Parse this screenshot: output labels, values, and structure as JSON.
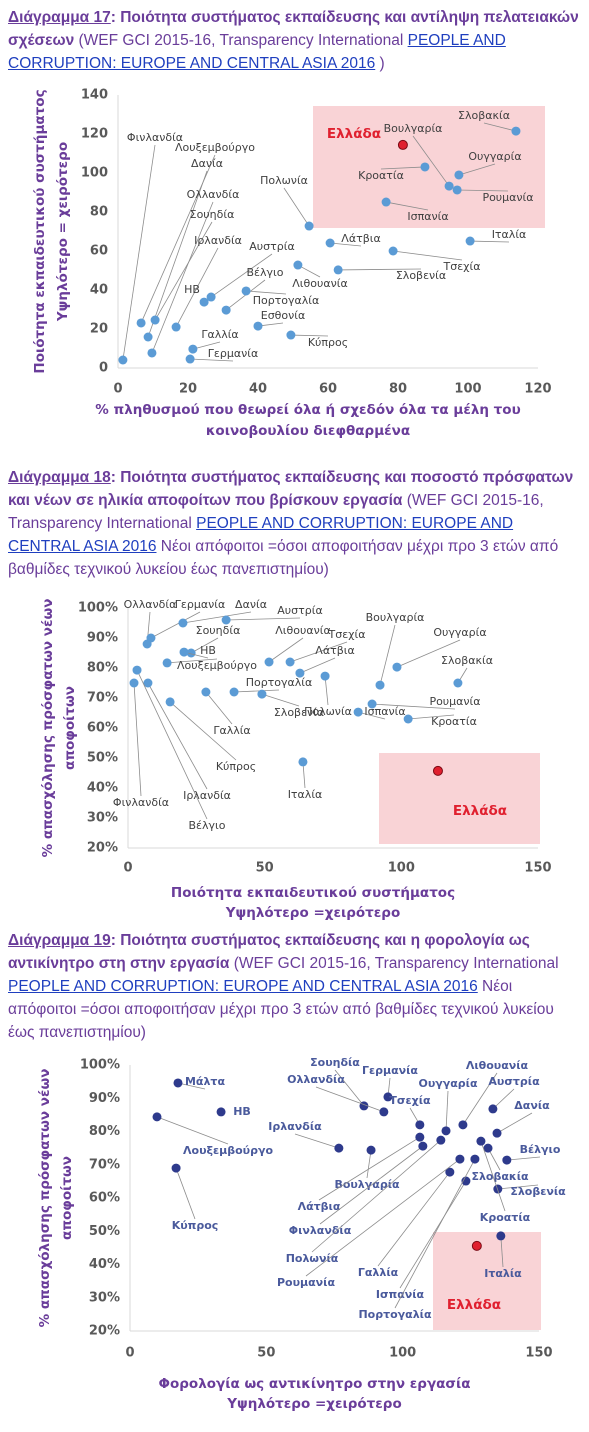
{
  "chart_data": [
    {
      "type": "scatter",
      "caption": [
        {
          "text": "Διάγραμμα 17",
          "style": "label"
        },
        {
          "text": ": Ποιότητα συστήματος εκπαίδευσης και αντίληψη πελατειακών σχέσεων",
          "style": "title"
        },
        {
          "text": " (WEF GCI 2015-16, Transparency International ",
          "style": "source"
        },
        {
          "text": "PEOPLE AND CORRUPTION: EUROPE AND CENTRAL ASIA 2016",
          "style": "link"
        },
        {
          "text": " )",
          "style": "source"
        }
      ],
      "xlabel": [
        "% πληθυσμού που θεωρεί όλα ή σχεδόν όλα τα μέλη του",
        "κοινοβουλίου διεφθαρμένα"
      ],
      "ylabel": [
        "Ποιότητα εκπαιδευτικού συστήματος",
        "Υψηλότερο = χειρότερο"
      ],
      "xlim": [
        0,
        120
      ],
      "xticks": [
        0,
        20,
        40,
        60,
        80,
        100,
        120
      ],
      "ylim": [
        0,
        140
      ],
      "yticks": [
        0,
        20,
        40,
        60,
        80,
        100,
        120,
        140
      ],
      "color": "#5b9bd5",
      "label_color": "#404040",
      "labels": [
        "Φινλανδία",
        "Λουξεμβούργο",
        "Δανία",
        "Ολλανδία",
        "Σουηδία",
        "Ιρλανδία",
        "Γερμανία",
        "Γαλλία",
        "ΗΒ",
        "Αυστρία",
        "Βέλγιο",
        "Πορτογαλία",
        "Εσθονία",
        "Κύπρος",
        "Πολωνία",
        "Λιθουανία",
        "Λάτβια",
        "Σλοβενία",
        "Τσεχία",
        "Ιταλία",
        "Ισπανία",
        "Κροατία",
        "Βουλγαρία",
        "Ουγγαρία",
        "Ρουμανία",
        "Σλοβακία",
        "Ελλάδα"
      ],
      "x": [
        1.4,
        6.6,
        8.6,
        9.7,
        10.6,
        16.6,
        20.6,
        21.4,
        24.6,
        26.6,
        30.9,
        36.6,
        40.0,
        49.4,
        54.6,
        51.4,
        60.6,
        62.9,
        78.6,
        100.6,
        76.6,
        87.7,
        94.6,
        97.4,
        96.9,
        113.7,
        81.4
      ],
      "y": [
        4.1,
        23.1,
        15.9,
        7.7,
        24.6,
        21.0,
        4.6,
        9.7,
        33.8,
        36.4,
        29.7,
        39.5,
        21.5,
        16.9,
        72.8,
        52.8,
        64.1,
        50.3,
        60.0,
        65.1,
        85.1,
        103.1,
        93.3,
        99.0,
        91.3,
        121.5,
        114.4
      ],
      "colors": [
        "#5b9bd5",
        "#5b9bd5",
        "#5b9bd5",
        "#5b9bd5",
        "#5b9bd5",
        "#5b9bd5",
        "#5b9bd5",
        "#5b9bd5",
        "#5b9bd5",
        "#5b9bd5",
        "#5b9bd5",
        "#5b9bd5",
        "#5b9bd5",
        "#5b9bd5",
        "#5b9bd5",
        "#5b9bd5",
        "#5b9bd5",
        "#5b9bd5",
        "#5b9bd5",
        "#5b9bd5",
        "#5b9bd5",
        "#5b9bd5",
        "#5b9bd5",
        "#5b9bd5",
        "#5b9bd5",
        "#5b9bd5",
        "#e0202f"
      ]
    },
    {
      "type": "scatter",
      "caption": [
        {
          "text": "Διάγραμμα 18",
          "style": "label"
        },
        {
          "text": ": Ποιότητα συστήματος εκπαίδευσης και ποσοστό πρόσφατων και νέων σε ηλικία αποφοίτων που βρίσκουν εργασία",
          "style": "title"
        },
        {
          "text": " (WEF GCI 2015-16, Transparency International ",
          "style": "source"
        },
        {
          "text": "PEOPLE AND CORRUPTION: EUROPE AND CENTRAL ASIA 2016",
          "style": "link"
        },
        {
          "text": " Νέοι απόφοιτοι =όσοι αποφοιτήσαν μέχρι προ 3 ετών από βαθμίδες τεχνικού λυκείου έως πανεπιστημίου)",
          "style": "source"
        }
      ],
      "xlabel": [
        "Ποιότητα εκπαιδευτικού συστήματος",
        "Υψηλότερο =χειρότερο"
      ],
      "ylabel": [
        "% απασχόλησης πρόσφατων νέων",
        "αποφοίτων"
      ],
      "xlim": [
        0,
        150
      ],
      "xticks": [
        0,
        50,
        100,
        150
      ],
      "ylim": [
        20,
        100
      ],
      "yticks": [
        {
          "value": 20,
          "label": "20%"
        },
        {
          "value": 30,
          "label": "30%"
        },
        {
          "value": 40,
          "label": "40%"
        },
        {
          "value": 50,
          "label": "50%"
        },
        {
          "value": 60,
          "label": "60%"
        },
        {
          "value": 70,
          "label": "70%"
        },
        {
          "value": 80,
          "label": "80%"
        },
        {
          "value": 90,
          "label": "90%"
        },
        {
          "value": 100,
          "label": "100%"
        }
      ],
      "color": "#5b9bd5",
      "label_color": "#404040",
      "labels": [
        "Ολλανδία",
        "Γερμανία",
        "Δανία",
        "Αυστρία",
        "Σουηδία",
        "ΗΒ",
        "Λουξεμβούργο",
        "Λιθουανία",
        "Τσεχία",
        "Λάτβια",
        "Πορτογαλία",
        "Σλοβενία",
        "Γαλλία",
        "Κύπρος",
        "Ιρλανδία",
        "Βέλγιο",
        "Φινλανδία",
        "Πολωνία",
        "Ισπανία",
        "Βουλγαρία",
        "Ουγγαρία",
        "Ρουμανία",
        "Κροατία",
        "Σλοβακία",
        "Ιταλία",
        "Ελλάδα"
      ],
      "x": [
        7.0,
        8.4,
        20.1,
        35.9,
        23.1,
        20.5,
        14.3,
        51.6,
        59.3,
        62.9,
        38.8,
        49.0,
        28.5,
        15.4,
        7.3,
        3.3,
        2.2,
        72.1,
        84.2,
        92.2,
        98.4,
        89.3,
        102.5,
        120.7,
        64.0,
        113.4
      ],
      "y": [
        88.0,
        90.0,
        95.0,
        96.0,
        85.0,
        85.3,
        81.7,
        82.0,
        82.0,
        78.3,
        72.0,
        71.3,
        72.0,
        68.7,
        75.0,
        79.3,
        75.0,
        77.3,
        65.3,
        74.3,
        80.3,
        68.0,
        63.0,
        75.0,
        48.7,
        45.7
      ],
      "colors": [
        "#5b9bd5",
        "#5b9bd5",
        "#5b9bd5",
        "#5b9bd5",
        "#5b9bd5",
        "#5b9bd5",
        "#5b9bd5",
        "#5b9bd5",
        "#5b9bd5",
        "#5b9bd5",
        "#5b9bd5",
        "#5b9bd5",
        "#5b9bd5",
        "#5b9bd5",
        "#5b9bd5",
        "#5b9bd5",
        "#5b9bd5",
        "#5b9bd5",
        "#5b9bd5",
        "#5b9bd5",
        "#5b9bd5",
        "#5b9bd5",
        "#5b9bd5",
        "#5b9bd5",
        "#5b9bd5",
        "#e0202f"
      ]
    },
    {
      "type": "scatter",
      "caption": [
        {
          "text": "Διάγραμμα 19",
          "style": "label"
        },
        {
          "text": ": Ποιότητα συστήματος εκπαίδευσης και η φορολογία ως αντικίνητρο στη στην εργασία",
          "style": "title"
        },
        {
          "text": " (WEF GCI 2015-16, Transparency International ",
          "style": "source"
        },
        {
          "text": "PEOPLE AND CORRUPTION: EUROPE AND CENTRAL ASIA 2016",
          "style": "link"
        },
        {
          "text": " Νέοι απόφοιτοι =όσοι αποφοιτήσαν μέχρι προ 3 ετών από βαθμίδες τεχνικού λυκείου έως πανεπιστημίου)",
          "style": "source"
        }
      ],
      "xlabel": [
        "Φορολογία ως αντικίνητρο στην εργασία",
        "Υψηλότερο =χειρότερο"
      ],
      "ylabel": [
        "% απασχόλησης πρόσφατων νέων",
        "αποφοίτων"
      ],
      "xlim": [
        0,
        150
      ],
      "xticks": [
        0,
        50,
        100,
        150
      ],
      "ylim": [
        20,
        100
      ],
      "yticks": [
        {
          "value": 20,
          "label": "20%"
        },
        {
          "value": 30,
          "label": "30%"
        },
        {
          "value": 40,
          "label": "40%"
        },
        {
          "value": 50,
          "label": "50%"
        },
        {
          "value": 60,
          "label": "60%"
        },
        {
          "value": 70,
          "label": "70%"
        },
        {
          "value": 80,
          "label": "80%"
        },
        {
          "value": 90,
          "label": "90%"
        },
        {
          "value": 100,
          "label": "100%"
        }
      ],
      "color": "#2e3a8c",
      "label_color": "#4a5a9c",
      "labels": [
        "Μάλτα",
        "ΗΒ",
        "Λουξεμβούργο",
        "Κύπρος",
        "Σουηδία",
        "Ολλανδία",
        "Γερμανία",
        "Τσεχία",
        "Ιρλανδία",
        "Βουλγαρία",
        "Ουγγαρία",
        "Λιθουανία",
        "Αυστρία",
        "Δανία",
        "Βέλγιο",
        "Σλοβακία",
        "Σλοβενία",
        "Λάτβια",
        "Φινλανδία",
        "Πολωνία",
        "Γαλλία",
        "Ρουμανία",
        "Ισπανία",
        "Πορτογαλία",
        "Κροατία",
        "Ιταλία",
        "Ελλάδα"
      ],
      "x": [
        17.6,
        33.4,
        9.9,
        16.9,
        85.8,
        93.1,
        94.6,
        106.3,
        76.6,
        88.4,
        115.9,
        122.1,
        133.1,
        134.6,
        138.2,
        131.3,
        134.9,
        106.3,
        107.4,
        114.0,
        117.3,
        121.0,
        123.2,
        126.5,
        128.7,
        136.0,
        127.2
      ],
      "y": [
        94.6,
        85.9,
        84.4,
        69.0,
        87.7,
        85.9,
        90.4,
        82.0,
        75.0,
        74.4,
        80.2,
        82.0,
        86.8,
        79.5,
        71.4,
        75.0,
        62.7,
        78.3,
        75.6,
        77.4,
        67.8,
        71.7,
        65.1,
        71.7,
        77.1,
        48.6,
        45.6
      ],
      "colors": [
        "#2e3a8c",
        "#2e3a8c",
        "#2e3a8c",
        "#2e3a8c",
        "#2e3a8c",
        "#2e3a8c",
        "#2e3a8c",
        "#2e3a8c",
        "#2e3a8c",
        "#2e3a8c",
        "#2e3a8c",
        "#2e3a8c",
        "#2e3a8c",
        "#2e3a8c",
        "#2e3a8c",
        "#2e3a8c",
        "#2e3a8c",
        "#2e3a8c",
        "#2e3a8c",
        "#2e3a8c",
        "#2e3a8c",
        "#2e3a8c",
        "#2e3a8c",
        "#2e3a8c",
        "#2e3a8c",
        "#2e3a8c",
        "#e0202f"
      ]
    }
  ]
}
